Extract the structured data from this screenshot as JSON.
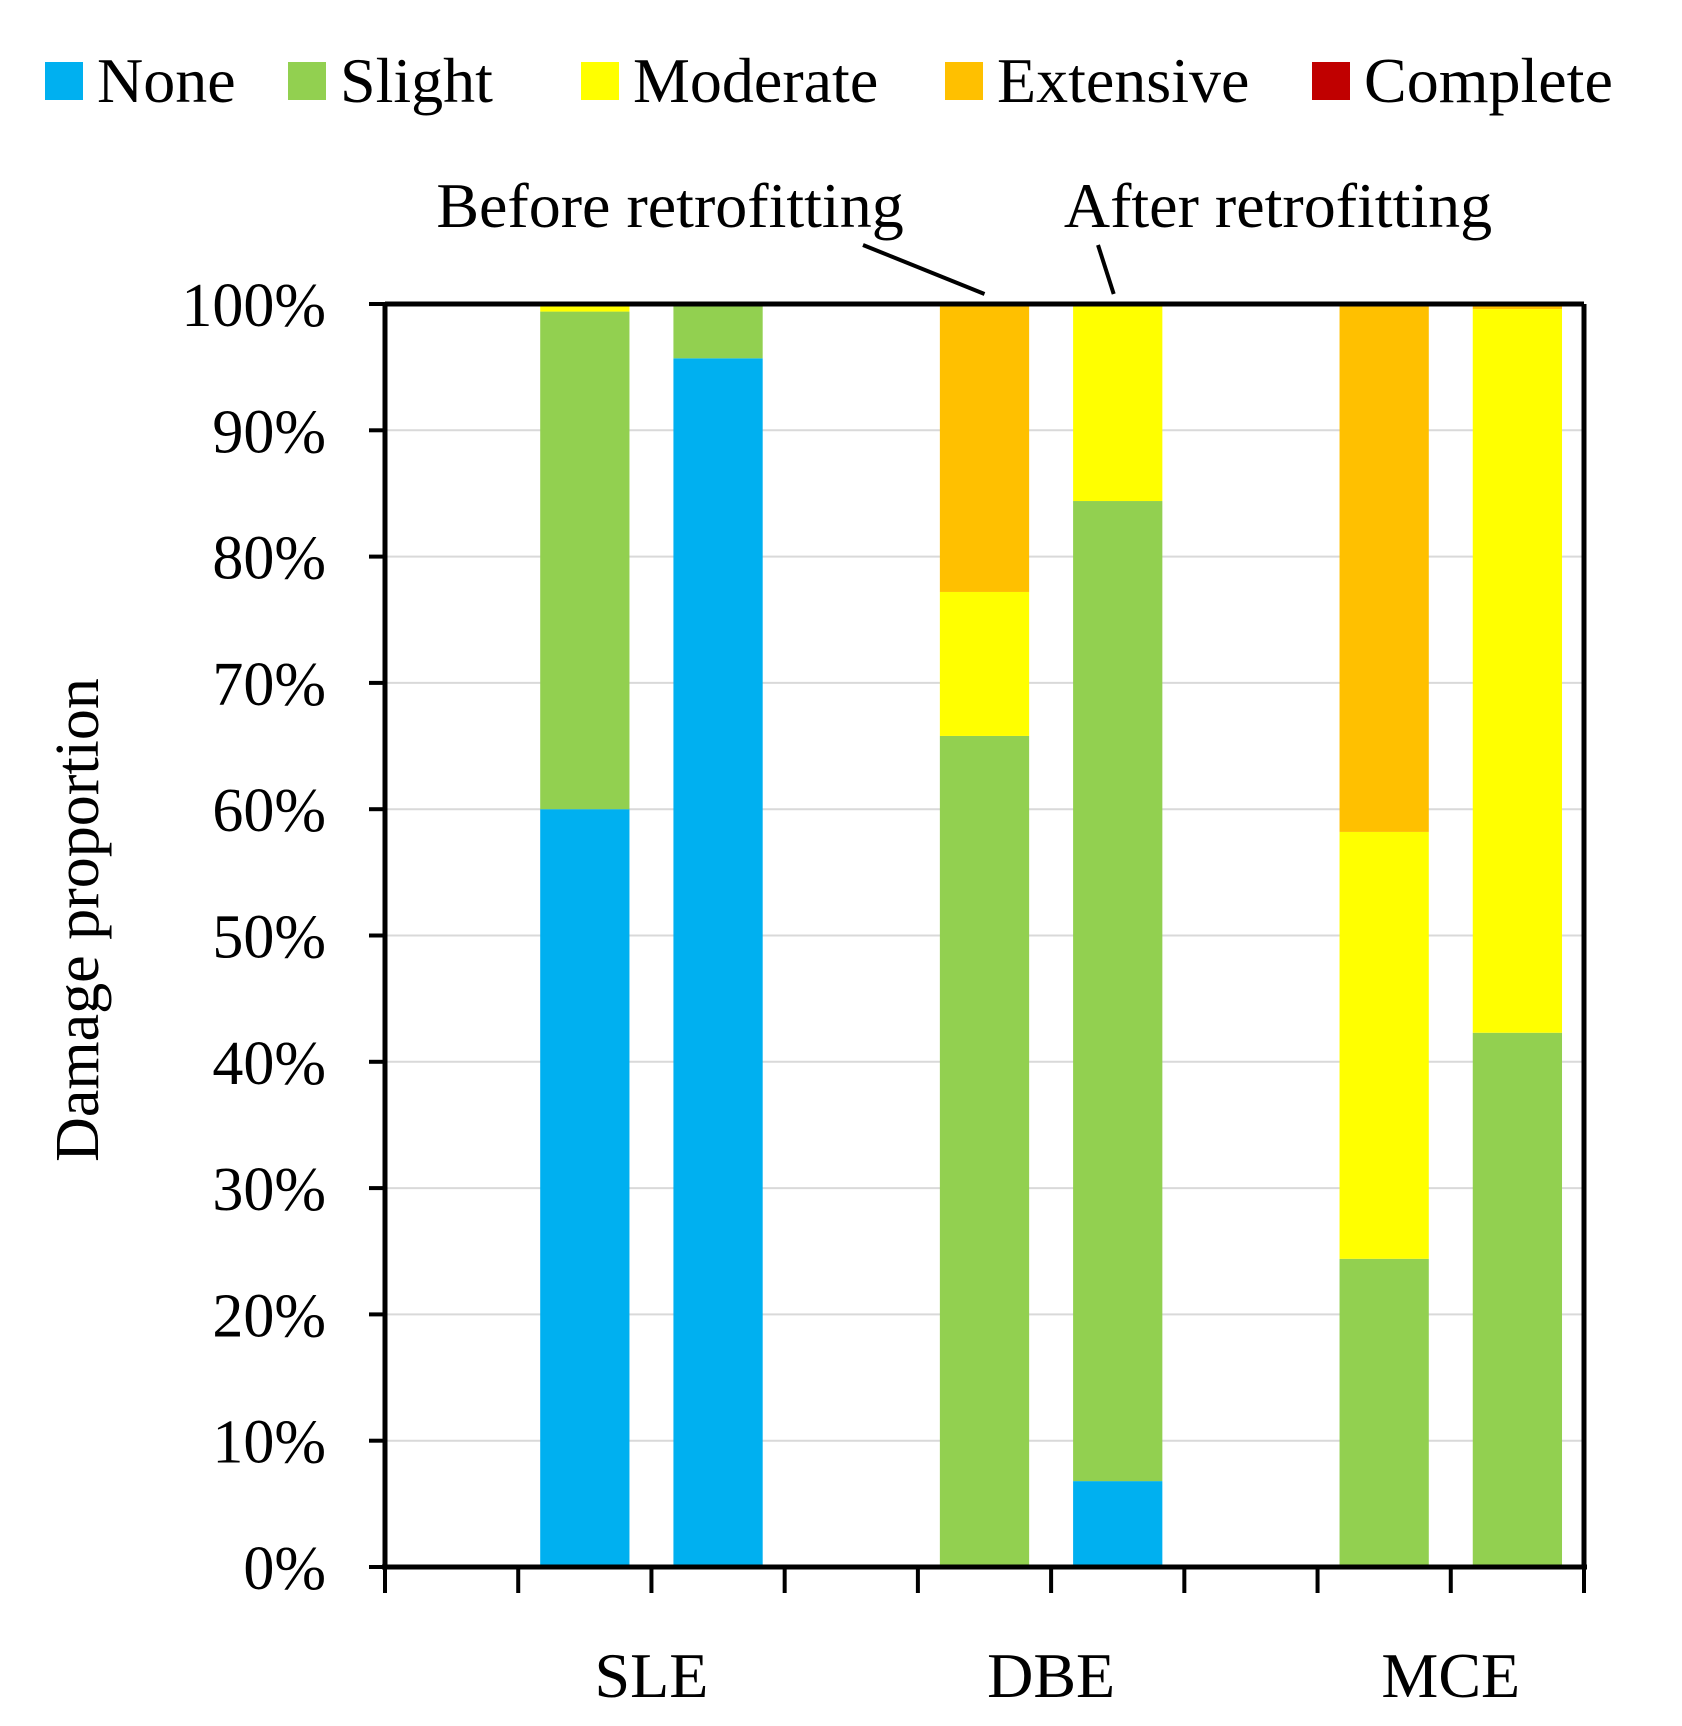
{
  "chart_data": {
    "type": "bar",
    "stacked": true,
    "categories": [
      "SLE",
      "DBE",
      "MCE"
    ],
    "bars_per_category": 2,
    "ylabel": "Damage proportion",
    "ylim": [
      0,
      100
    ],
    "y_ticks": [
      "0%",
      "10%",
      "20%",
      "30%",
      "40%",
      "50%",
      "60%",
      "70%",
      "80%",
      "90%",
      "100%"
    ],
    "grid": true,
    "legend_position": "top",
    "annotations": [
      {
        "text": "Before retrofitting",
        "points_to": "DBE bar 1"
      },
      {
        "text": "After retrofitting",
        "points_to": "DBE bar 2"
      }
    ],
    "series": [
      {
        "name": "None",
        "color": "#00B0F0",
        "values": [
          [
            60.0,
            95.7
          ],
          [
            0.0,
            6.8
          ],
          [
            0.0,
            0.0
          ]
        ]
      },
      {
        "name": "Slight",
        "color": "#92D050",
        "values": [
          [
            39.4,
            4.3
          ],
          [
            65.8,
            77.6
          ],
          [
            24.4,
            42.3
          ]
        ]
      },
      {
        "name": "Moderate",
        "color": "#FFFF00",
        "values": [
          [
            0.6,
            0.0
          ],
          [
            11.4,
            15.6
          ],
          [
            33.8,
            57.3
          ]
        ]
      },
      {
        "name": "Extensive",
        "color": "#FFC000",
        "values": [
          [
            0.0,
            0.0
          ],
          [
            22.8,
            0.0
          ],
          [
            41.6,
            0.4
          ]
        ]
      },
      {
        "name": "Complete",
        "color": "#C00000",
        "values": [
          [
            0.0,
            0.0
          ],
          [
            0.0,
            0.0
          ],
          [
            0.2,
            0.0
          ]
        ]
      }
    ]
  }
}
